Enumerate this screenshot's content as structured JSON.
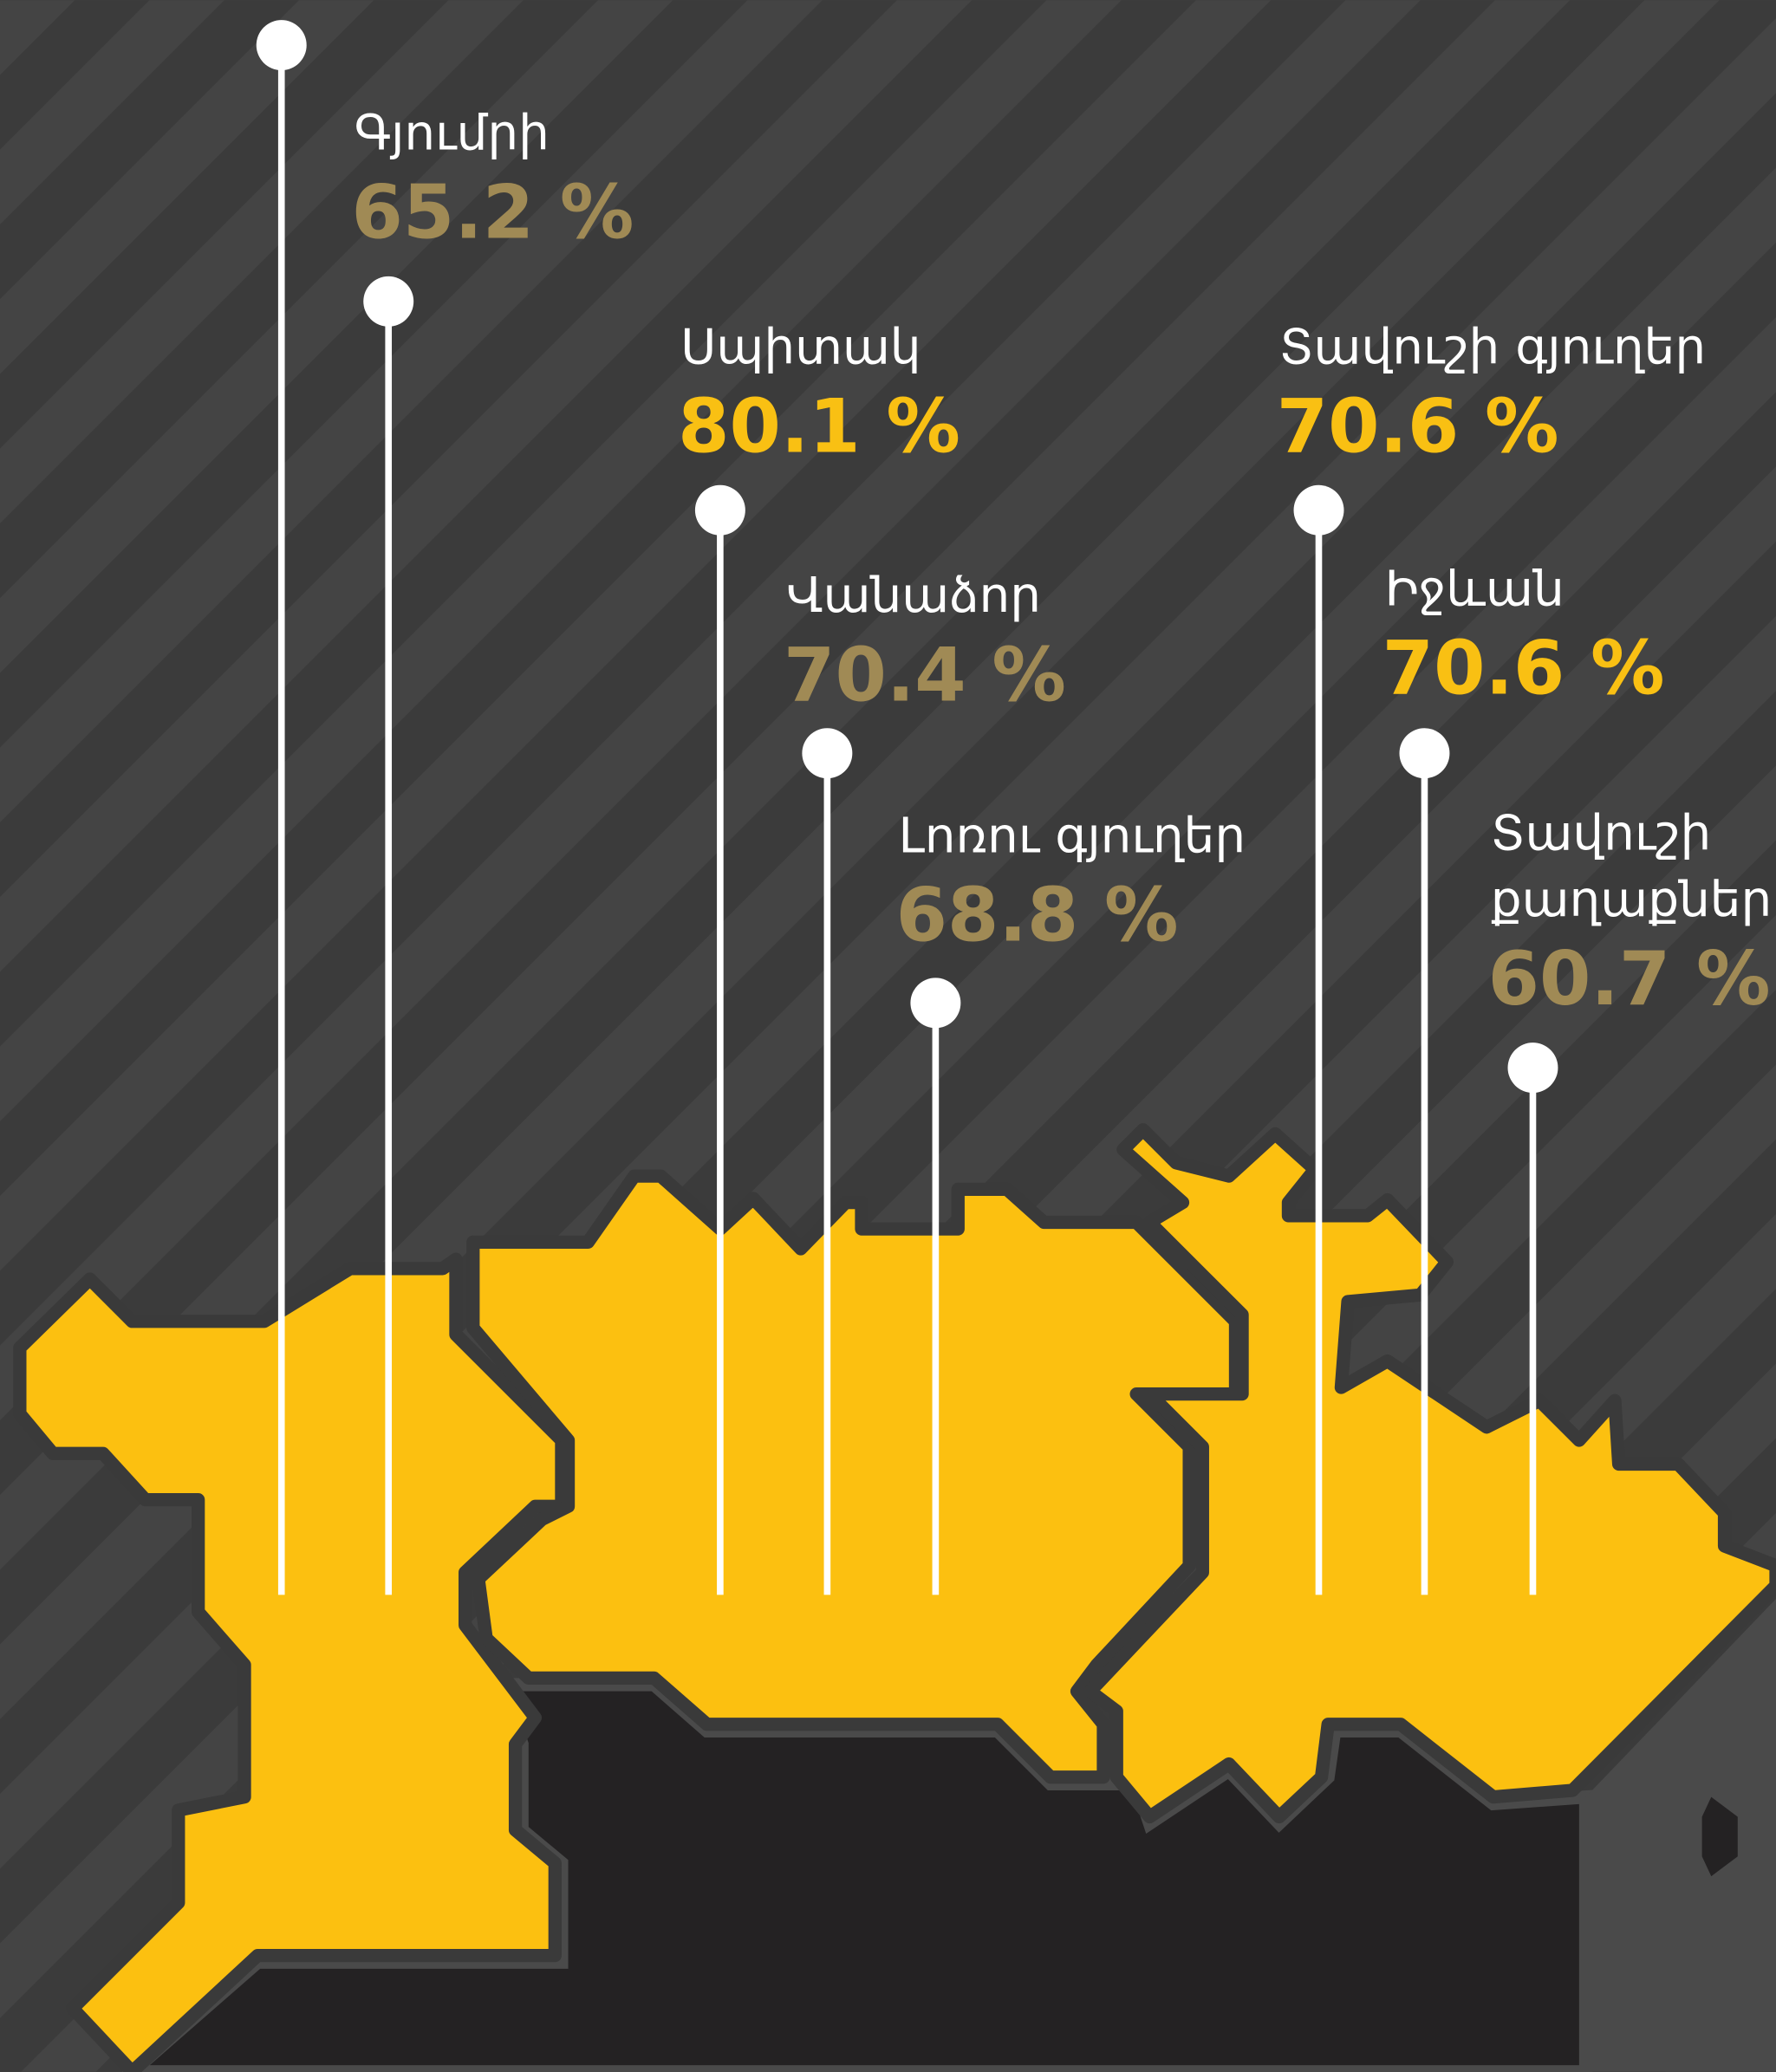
{
  "regions": [
    {
      "name": "Գյումրի",
      "value": "65.2 %",
      "color": "#a08a55"
    },
    {
      "name": "Սպիտակ",
      "value": "80.1 %",
      "color": "#f9c013"
    },
    {
      "name": "Վանաձոր",
      "value": "70.4 %",
      "color": "#a08a55"
    },
    {
      "name": "Լոռու գյուղեր",
      "value": "68.8 %",
      "color": "#a08a55"
    },
    {
      "name": "Տավուշի գյուղեր",
      "value": "70.6 %",
      "color": "#f9c013"
    },
    {
      "name": "Իջևան",
      "value": "70.6 %",
      "color": "#f9c013"
    },
    {
      "name": [
        "Տավուշի",
        "քաղաքներ"
      ],
      "value": "60.7 %",
      "color": "#a08a55"
    }
  ]
}
